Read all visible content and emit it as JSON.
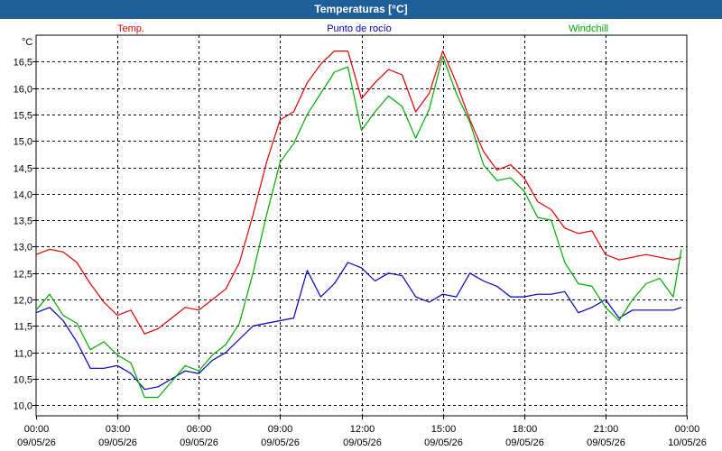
{
  "window": {
    "title": "Temperaturas [°C]"
  },
  "colors": {
    "temp": "#dd0000",
    "dew": "#0000bb",
    "windchill": "#00aa00",
    "grid": "#000000",
    "axis": "#000000",
    "titlebar": "#1f5f99"
  },
  "chart_data": {
    "type": "line",
    "title": "Temperaturas [°C]",
    "ylabel": "°C",
    "ylim": [
      9.8,
      17.0
    ],
    "yticks": [
      "10,0",
      "10,5",
      "11,0",
      "11,5",
      "12,0",
      "12,5",
      "13,0",
      "13,5",
      "14,0",
      "14,5",
      "15,0",
      "15,5",
      "16,0",
      "16,5"
    ],
    "yticks_values": [
      10.0,
      10.5,
      11.0,
      11.5,
      12.0,
      12.5,
      13.0,
      13.5,
      14.0,
      14.5,
      15.0,
      15.5,
      16.0,
      16.5
    ],
    "xlim": [
      0,
      24
    ],
    "xticks": [
      {
        "time": "00:00",
        "date": "09/05/26"
      },
      {
        "time": "03:00",
        "date": "09/05/26"
      },
      {
        "time": "06:00",
        "date": "09/05/26"
      },
      {
        "time": "09:00",
        "date": "09/05/26"
      },
      {
        "time": "12:00",
        "date": "09/05/26"
      },
      {
        "time": "15:00",
        "date": "09/05/26"
      },
      {
        "time": "18:00",
        "date": "09/05/26"
      },
      {
        "time": "21:00",
        "date": "09/05/26"
      },
      {
        "time": "00:00",
        "date": "10/05/26"
      }
    ],
    "x_hours": [
      0.0,
      0.5,
      1.0,
      1.5,
      2.0,
      2.5,
      3.0,
      3.5,
      4.0,
      4.5,
      5.0,
      5.5,
      6.0,
      6.5,
      7.0,
      7.5,
      8.0,
      8.5,
      9.0,
      9.5,
      10.0,
      10.5,
      11.0,
      11.5,
      12.0,
      12.5,
      13.0,
      13.5,
      14.0,
      14.5,
      15.0,
      15.5,
      16.0,
      16.5,
      17.0,
      17.5,
      18.0,
      18.5,
      19.0,
      19.5,
      20.0,
      20.5,
      21.0,
      21.5,
      22.0,
      22.5,
      23.0,
      23.5,
      23.8
    ],
    "grid": true,
    "legend": "top",
    "series": [
      {
        "name": "Temp.",
        "color": "#dd0000",
        "values": [
          12.85,
          12.95,
          12.9,
          12.7,
          12.3,
          11.95,
          11.7,
          11.8,
          11.35,
          11.45,
          11.65,
          11.85,
          11.8,
          12.0,
          12.2,
          12.7,
          13.6,
          14.6,
          15.4,
          15.55,
          16.1,
          16.45,
          16.7,
          16.7,
          15.8,
          16.1,
          16.35,
          16.25,
          15.55,
          15.9,
          16.7,
          16.1,
          15.4,
          14.8,
          14.45,
          14.55,
          14.3,
          13.85,
          13.7,
          13.35,
          13.25,
          13.3,
          12.85,
          12.75,
          12.8,
          12.85,
          12.8,
          12.75,
          12.8
        ]
      },
      {
        "name": "Punto de rocío",
        "color": "#0000bb",
        "values": [
          11.75,
          11.85,
          11.6,
          11.2,
          10.7,
          10.7,
          10.75,
          10.6,
          10.3,
          10.35,
          10.5,
          10.65,
          10.6,
          10.85,
          11.0,
          11.25,
          11.5,
          11.55,
          11.6,
          11.65,
          12.55,
          12.05,
          12.3,
          12.7,
          12.6,
          12.35,
          12.5,
          12.45,
          12.05,
          11.95,
          12.1,
          12.05,
          12.5,
          12.35,
          12.25,
          12.05,
          12.05,
          12.1,
          12.1,
          12.15,
          11.75,
          11.85,
          12.0,
          11.65,
          11.8,
          11.8,
          11.8,
          11.8,
          11.85
        ]
      },
      {
        "name": "Windchill",
        "color": "#00aa00",
        "values": [
          11.8,
          12.1,
          11.7,
          11.55,
          11.05,
          11.2,
          10.95,
          10.8,
          10.15,
          10.15,
          10.45,
          10.75,
          10.65,
          10.95,
          11.15,
          11.55,
          12.5,
          13.6,
          14.6,
          14.95,
          15.5,
          15.9,
          16.3,
          16.4,
          15.2,
          15.55,
          15.85,
          15.65,
          15.05,
          15.6,
          16.6,
          15.9,
          15.35,
          14.55,
          14.25,
          14.3,
          14.05,
          13.55,
          13.5,
          12.7,
          12.3,
          12.25,
          11.85,
          11.6,
          12.0,
          12.3,
          12.4,
          12.05,
          12.95
        ]
      }
    ]
  }
}
